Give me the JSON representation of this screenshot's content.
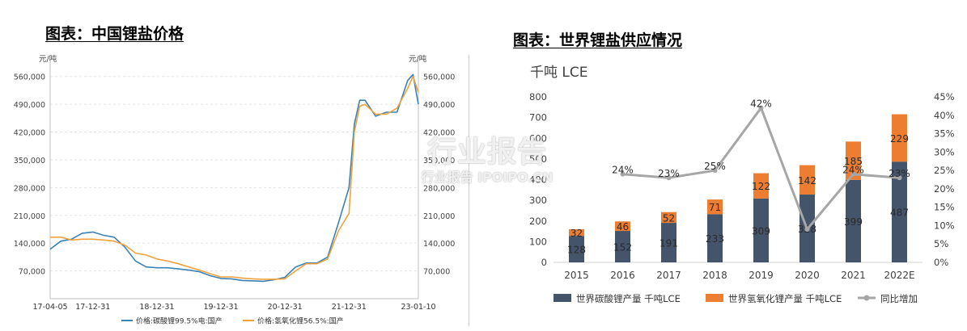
{
  "left_panel": {
    "title": "图表：中国锂盐价格",
    "unit_label": "元/吨"
  },
  "right_panel": {
    "title": "图表：世界锂盐供应情况",
    "unit_label": "千吨 LCE"
  },
  "watermark": {
    "main": "行业报告",
    "sub": "行业报告 IPOIPO.CN"
  },
  "colors": {
    "carbonate_line": "#3a82b5",
    "hydroxide_line": "#f2a23c",
    "bar_carbonate": "#44546a",
    "bar_hydroxide": "#ed7d31",
    "yoy_line": "#a6a6a6"
  },
  "chart_data": [
    {
      "type": "line",
      "ylim": [
        0,
        590000
      ],
      "y_ticks": [
        "70,000",
        "140,000",
        "210,000",
        "280,000",
        "350,000",
        "420,000",
        "490,000",
        "560,000"
      ],
      "y_tick_values": [
        70000,
        140000,
        210000,
        280000,
        350000,
        420000,
        490000,
        560000
      ],
      "x_ticks": [
        "17-04-05",
        "17-12-31",
        "18-12-31",
        "19-12-31",
        "20-12-31",
        "21-12-31",
        "23-01-10"
      ],
      "x": [
        "2017-04",
        "2017-06",
        "2017-08",
        "2017-10",
        "2017-12",
        "2018-02",
        "2018-04",
        "2018-06",
        "2018-08",
        "2018-10",
        "2018-12",
        "2019-02",
        "2019-04",
        "2019-06",
        "2019-08",
        "2019-10",
        "2019-12",
        "2020-02",
        "2020-04",
        "2020-06",
        "2020-08",
        "2020-10",
        "2020-12",
        "2021-02",
        "2021-04",
        "2021-06",
        "2021-08",
        "2021-10",
        "2021-12",
        "2022-01",
        "2022-02",
        "2022-03",
        "2022-05",
        "2022-07",
        "2022-09",
        "2022-11",
        "2022-12",
        "2023-01"
      ],
      "series": [
        {
          "name": "价格:碳酸锂99.5%电:国产",
          "values": [
            125000,
            145000,
            150000,
            165000,
            168000,
            160000,
            155000,
            130000,
            95000,
            80000,
            78000,
            78000,
            75000,
            72000,
            68000,
            58000,
            51000,
            50000,
            46000,
            45000,
            44000,
            48000,
            54000,
            80000,
            90000,
            90000,
            105000,
            190000,
            280000,
            440000,
            500000,
            500000,
            460000,
            470000,
            470000,
            550000,
            565000,
            490000
          ]
        },
        {
          "name": "价格:氢氧化锂56.5%:国产",
          "values": [
            155000,
            155000,
            148000,
            150000,
            150000,
            148000,
            145000,
            135000,
            115000,
            110000,
            100000,
            95000,
            88000,
            80000,
            72000,
            63000,
            55000,
            55000,
            52000,
            50000,
            49000,
            49000,
            50000,
            70000,
            88000,
            88000,
            100000,
            170000,
            215000,
            420000,
            485000,
            490000,
            465000,
            465000,
            480000,
            530000,
            560000,
            520000
          ]
        }
      ]
    },
    {
      "type": "bar",
      "categories": [
        "2015",
        "2016",
        "2017",
        "2018",
        "2019",
        "2020",
        "2021",
        "2022E"
      ],
      "ylim": [
        0,
        800
      ],
      "y_ticks": [
        "0",
        "100",
        "200",
        "300",
        "400",
        "500",
        "600",
        "700",
        "800"
      ],
      "y2lim": [
        0,
        0.45
      ],
      "y2_ticks": [
        "0%",
        "5%",
        "10%",
        "15%",
        "20%",
        "25%",
        "30%",
        "35%",
        "40%",
        "45%"
      ],
      "series": [
        {
          "name": "世界碳酸锂产量 千吨LCE",
          "kind": "bar-stack",
          "values": [
            128,
            152,
            191,
            233,
            309,
            328,
            399,
            487
          ],
          "labels": [
            "128",
            "152",
            "191",
            "233",
            "309",
            "328",
            "399",
            "487"
          ]
        },
        {
          "name": "世界氢氧化锂产量 千吨LCE",
          "kind": "bar-stack",
          "values": [
            32,
            46,
            52,
            71,
            122,
            142,
            185,
            229
          ],
          "labels": [
            "32",
            "46",
            "52",
            "71",
            "122",
            "142",
            "185",
            "229"
          ]
        },
        {
          "name": "同比增加",
          "kind": "line",
          "axis": "right",
          "values": [
            null,
            0.24,
            0.23,
            0.25,
            0.42,
            0.09,
            0.24,
            0.23
          ],
          "labels": [
            "",
            "24%",
            "23%",
            "25%",
            "42%",
            "",
            "24%",
            "23%"
          ]
        }
      ]
    }
  ]
}
